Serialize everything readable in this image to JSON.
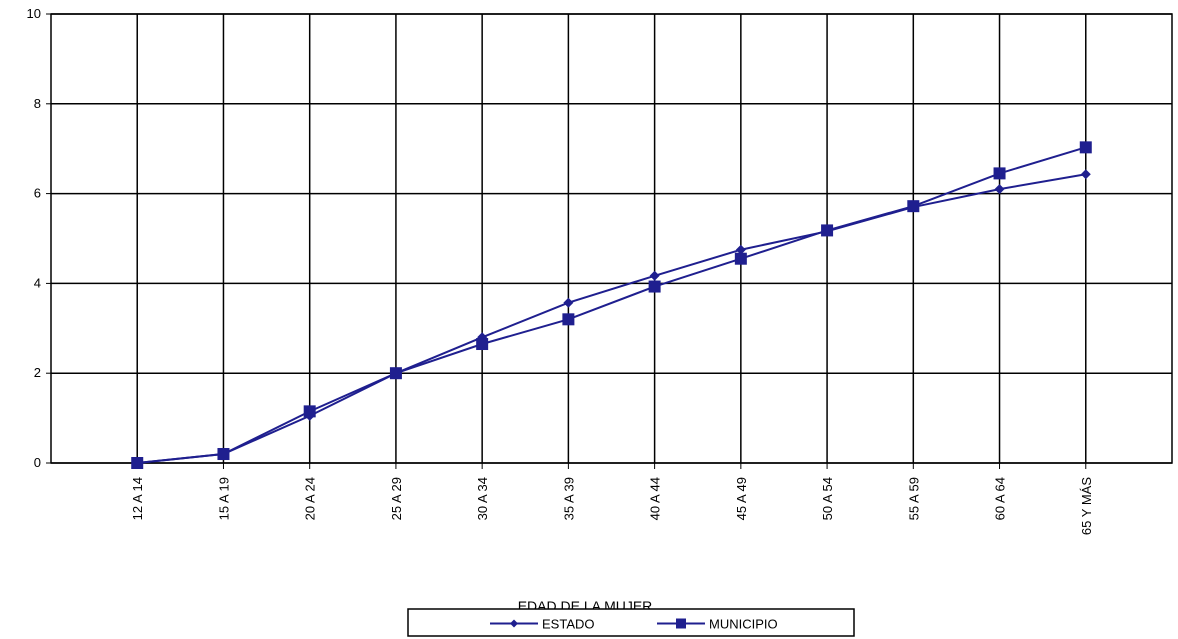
{
  "chart_data": {
    "type": "line",
    "title": "",
    "xlabel": "EDAD DE LA MUJER",
    "ylabel": "",
    "ylim": [
      0,
      10
    ],
    "yticks": [
      0,
      2,
      4,
      6,
      8,
      10
    ],
    "grid": true,
    "legend_position": "bottom",
    "categories": [
      "12 A 14",
      "15 A 19",
      "20 A 24",
      "25 A 29",
      "30 A 34",
      "35 A 39",
      "40 A 44",
      "45 A 49",
      "50 A 54",
      "55 A 59",
      "60 A 64",
      "65 Y MÁS"
    ],
    "series": [
      {
        "name": "ESTADO",
        "marker": "diamond",
        "color": "#1f1f8f",
        "values": [
          0,
          0.2,
          1.05,
          2.0,
          2.8,
          3.57,
          4.17,
          4.75,
          5.16,
          5.7,
          6.1,
          6.43
        ]
      },
      {
        "name": "MUNICIPIO",
        "marker": "square",
        "color": "#1f1f8f",
        "values": [
          0,
          0.2,
          1.15,
          2.0,
          2.65,
          3.2,
          3.93,
          4.55,
          5.18,
          5.72,
          6.45,
          7.03
        ]
      }
    ]
  }
}
